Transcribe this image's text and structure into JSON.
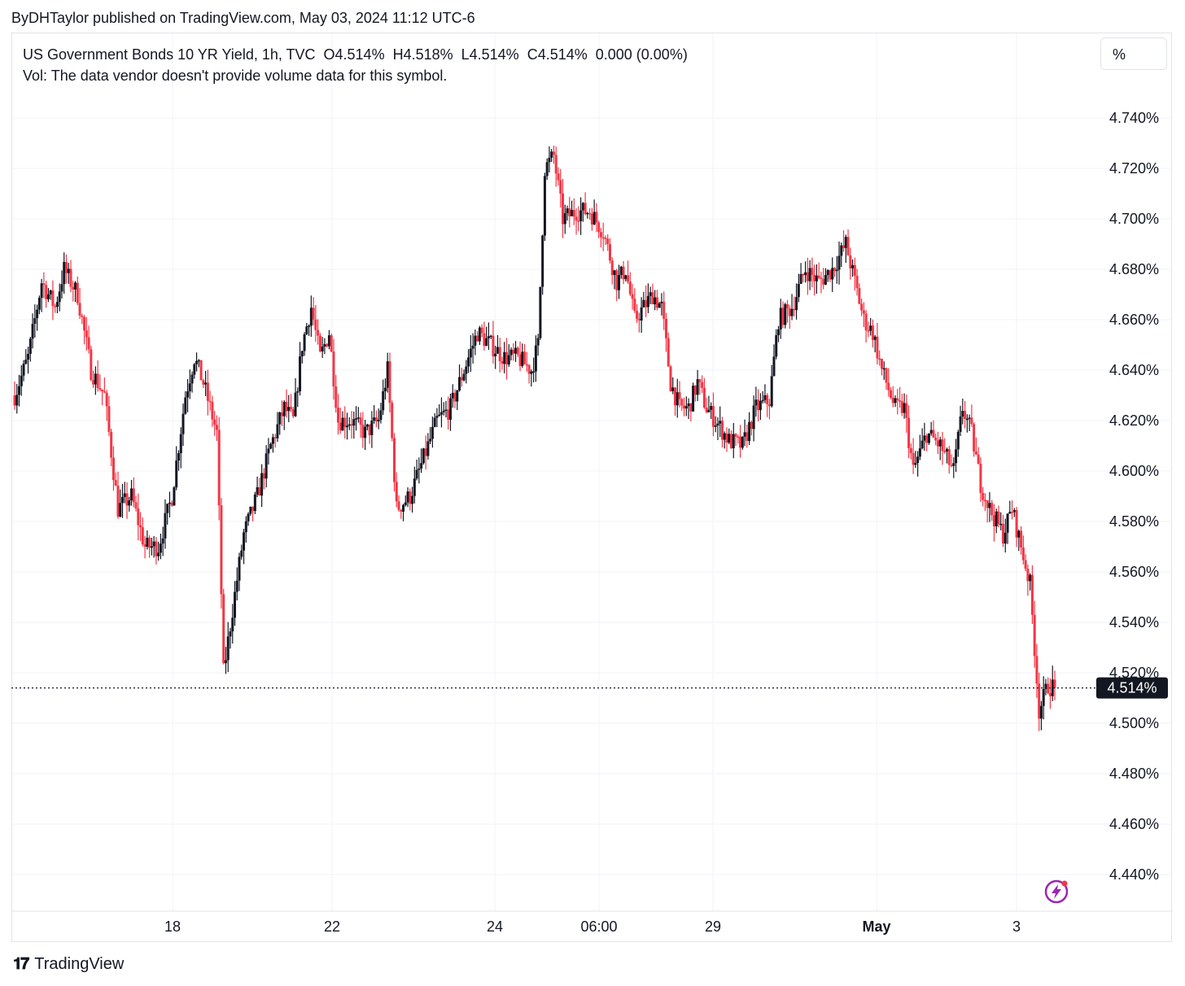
{
  "publisher_line": "ByDHTaylor published on TradingView.com, May 03, 2024 11:12 UTC-6",
  "legend": {
    "line1": "US Government Bonds 10 YR Yield, 1h, TVC  O4.514%  H4.518%  L4.514%  C4.514%  0.000 (0.00%)",
    "line2": "Vol: The data vendor doesn't provide volume data for this symbol."
  },
  "unit_button": "%",
  "footer": {
    "brand": "TradingView",
    "logo_icon": "tradingview-logo-icon"
  },
  "colors": {
    "up": "#131722",
    "down": "#f23645",
    "grid": "#f0f3fa",
    "price_tag_bg": "#131722"
  },
  "chart_data": {
    "type": "candlestick",
    "symbol": "US Government Bonds 10 YR Yield",
    "interval": "1h",
    "source": "TVC",
    "y_unit": "%",
    "ylim": [
      4.432,
      4.75
    ],
    "y_ticks": [
      "4.740%",
      "4.720%",
      "4.700%",
      "4.680%",
      "4.660%",
      "4.640%",
      "4.620%",
      "4.600%",
      "4.580%",
      "4.560%",
      "4.540%",
      "4.520%",
      "4.500%",
      "4.480%",
      "4.460%",
      "4.440%"
    ],
    "x_ticks": [
      "18",
      "22",
      "24",
      "06:00",
      "29",
      "May",
      "3"
    ],
    "last_price": {
      "label": "4.514%",
      "value": 4.514
    },
    "grid": true,
    "series_waypoints": [
      [
        0,
        4.63
      ],
      [
        6,
        4.645
      ],
      [
        12,
        4.675
      ],
      [
        18,
        4.665
      ],
      [
        22,
        4.68
      ],
      [
        28,
        4.67
      ],
      [
        34,
        4.64
      ],
      [
        40,
        4.63
      ],
      [
        46,
        4.585
      ],
      [
        52,
        4.59
      ],
      [
        58,
        4.57
      ],
      [
        64,
        4.57
      ],
      [
        70,
        4.59
      ],
      [
        76,
        4.63
      ],
      [
        80,
        4.645
      ],
      [
        84,
        4.635
      ],
      [
        90,
        4.615
      ],
      [
        93,
        4.52
      ],
      [
        97,
        4.545
      ],
      [
        102,
        4.575
      ],
      [
        108,
        4.59
      ],
      [
        114,
        4.61
      ],
      [
        120,
        4.625
      ],
      [
        124,
        4.62
      ],
      [
        128,
        4.65
      ],
      [
        132,
        4.665
      ],
      [
        136,
        4.645
      ],
      [
        140,
        4.655
      ],
      [
        144,
        4.62
      ],
      [
        150,
        4.62
      ],
      [
        156,
        4.615
      ],
      [
        162,
        4.62
      ],
      [
        166,
        4.64
      ],
      [
        170,
        4.585
      ],
      [
        176,
        4.59
      ],
      [
        182,
        4.605
      ],
      [
        188,
        4.62
      ],
      [
        194,
        4.625
      ],
      [
        200,
        4.64
      ],
      [
        206,
        4.655
      ],
      [
        212,
        4.65
      ],
      [
        218,
        4.645
      ],
      [
        224,
        4.645
      ],
      [
        230,
        4.64
      ],
      [
        233,
        4.65
      ],
      [
        236,
        4.72
      ],
      [
        240,
        4.725
      ],
      [
        244,
        4.7
      ],
      [
        250,
        4.703
      ],
      [
        256,
        4.703
      ],
      [
        262,
        4.695
      ],
      [
        268,
        4.675
      ],
      [
        272,
        4.68
      ],
      [
        276,
        4.66
      ],
      [
        280,
        4.665
      ],
      [
        284,
        4.67
      ],
      [
        288,
        4.665
      ],
      [
        292,
        4.635
      ],
      [
        296,
        4.625
      ],
      [
        300,
        4.625
      ],
      [
        304,
        4.635
      ],
      [
        308,
        4.625
      ],
      [
        312,
        4.62
      ],
      [
        318,
        4.612
      ],
      [
        324,
        4.61
      ],
      [
        330,
        4.625
      ],
      [
        336,
        4.628
      ],
      [
        340,
        4.66
      ],
      [
        346,
        4.665
      ],
      [
        352,
        4.68
      ],
      [
        358,
        4.675
      ],
      [
        364,
        4.68
      ],
      [
        370,
        4.69
      ],
      [
        374,
        4.675
      ],
      [
        378,
        4.66
      ],
      [
        382,
        4.655
      ],
      [
        386,
        4.64
      ],
      [
        392,
        4.625
      ],
      [
        396,
        4.625
      ],
      [
        400,
        4.6
      ],
      [
        406,
        4.615
      ],
      [
        412,
        4.61
      ],
      [
        418,
        4.6
      ],
      [
        422,
        4.625
      ],
      [
        426,
        4.615
      ],
      [
        430,
        4.595
      ],
      [
        434,
        4.585
      ],
      [
        440,
        4.575
      ],
      [
        444,
        4.585
      ],
      [
        448,
        4.57
      ],
      [
        452,
        4.555
      ],
      [
        456,
        4.505
      ],
      [
        460,
        4.515
      ],
      [
        463,
        4.514
      ]
    ]
  }
}
